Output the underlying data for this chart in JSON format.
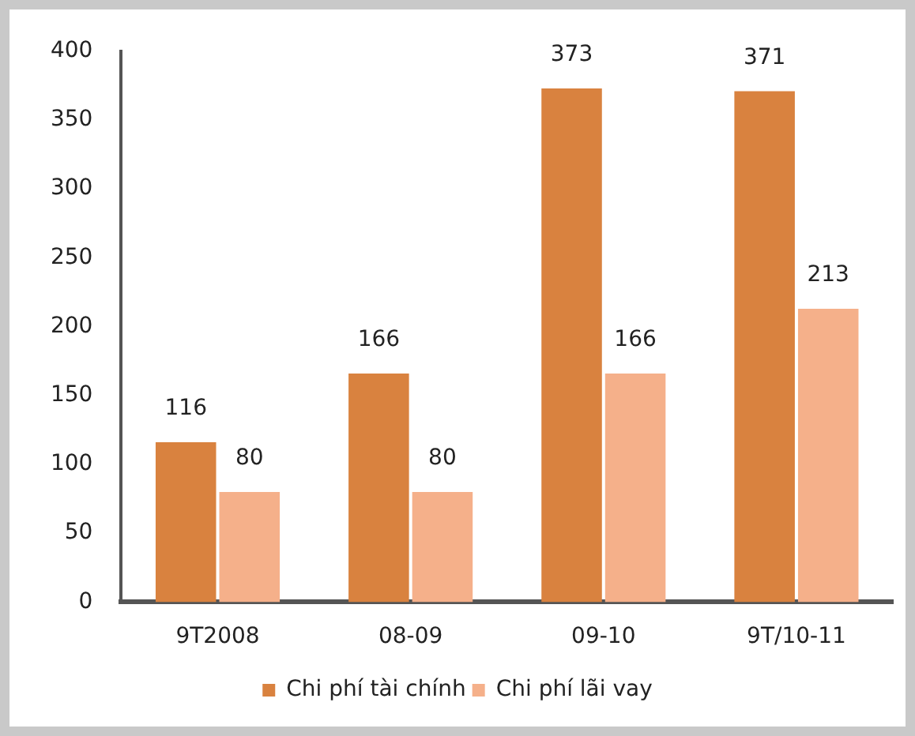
{
  "chart_data": {
    "type": "bar",
    "categories": [
      "9T2008",
      "08-09",
      "09-10",
      "9T/10-11"
    ],
    "series": [
      {
        "name": "Chi phí tài chính",
        "color": "#d9823f",
        "values": [
          116,
          166,
          373,
          371
        ]
      },
      {
        "name": "Chi phí lãi vay",
        "color": "#f5b08a",
        "values": [
          80,
          80,
          166,
          213
        ]
      }
    ],
    "ylim": [
      0,
      400
    ],
    "yticks": [
      0,
      50,
      100,
      150,
      200,
      250,
      300,
      350,
      400
    ],
    "grid": false,
    "legend": "bottom",
    "data_labels": true
  }
}
